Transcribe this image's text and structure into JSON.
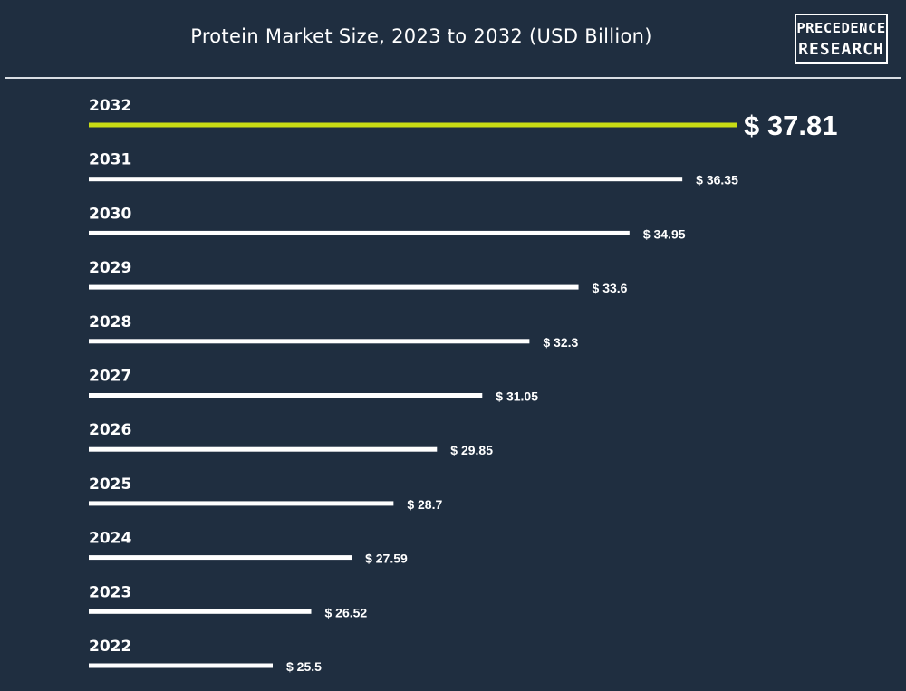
{
  "header": {
    "title": "Protein Market Size, 2023 to 2032 (USD Billion)",
    "logo_line1": "PRECEDENCE",
    "logo_line2": "RESEARCH"
  },
  "colors": {
    "background": "#1f2e40",
    "bar": "#ffffff",
    "highlight_bar": "#c8dc14",
    "text": "#ffffff"
  },
  "chart_data": {
    "type": "bar",
    "orientation": "horizontal",
    "title": "Protein Market Size, 2023 to 2032 (USD Billion)",
    "categories": [
      "2032",
      "2031",
      "2030",
      "2029",
      "2028",
      "2027",
      "2026",
      "2025",
      "2024",
      "2023",
      "2022"
    ],
    "values": [
      37.81,
      36.35,
      34.95,
      33.6,
      32.3,
      31.05,
      29.85,
      28.7,
      27.59,
      26.52,
      25.5
    ],
    "value_labels": [
      "$ 37.81",
      "$ 36.35",
      "$ 34.95",
      "$ 33.6",
      "$ 32.3",
      "$ 31.05",
      "$ 29.85",
      "$ 28.7",
      "$ 27.59",
      "$ 26.52",
      "$ 25.5"
    ],
    "highlight_category": "2032",
    "xlabel": "",
    "ylabel": "",
    "grid": false
  }
}
